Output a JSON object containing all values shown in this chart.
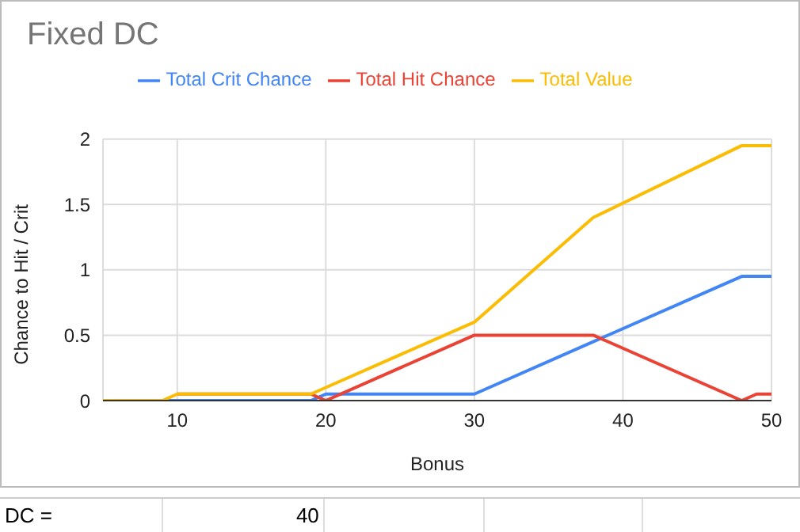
{
  "chart_data": {
    "type": "line",
    "title": "Fixed DC",
    "xlabel": "Bonus",
    "ylabel": "Chance to Hit / Crit",
    "x": [
      5,
      9,
      10,
      19,
      20,
      30,
      38,
      48,
      49,
      50
    ],
    "series": [
      {
        "name": "Total Crit Chance",
        "color": "#4285f4",
        "values": [
          0,
          0,
          0,
          0,
          0.05,
          0.05,
          0.45,
          0.95,
          0.95,
          0.95
        ]
      },
      {
        "name": "Total Hit Chance",
        "color": "#ea4335",
        "values": [
          null,
          null,
          0.05,
          0.05,
          0,
          0.5,
          0.5,
          0,
          0.05,
          0.05
        ]
      },
      {
        "name": "Total Value",
        "color": "#fbbc04",
        "values": [
          0,
          0,
          0.05,
          0.05,
          0.1,
          0.6,
          1.4,
          1.95,
          1.95,
          1.95
        ]
      }
    ],
    "xlim": [
      5,
      50
    ],
    "xticks": [
      10,
      20,
      30,
      40,
      50
    ],
    "ylim": [
      0,
      2
    ],
    "yticks": [
      0,
      0.5,
      1,
      1.5,
      2
    ],
    "grid": true,
    "legend": "top",
    "annotations": [
      "DC =",
      "40"
    ]
  }
}
